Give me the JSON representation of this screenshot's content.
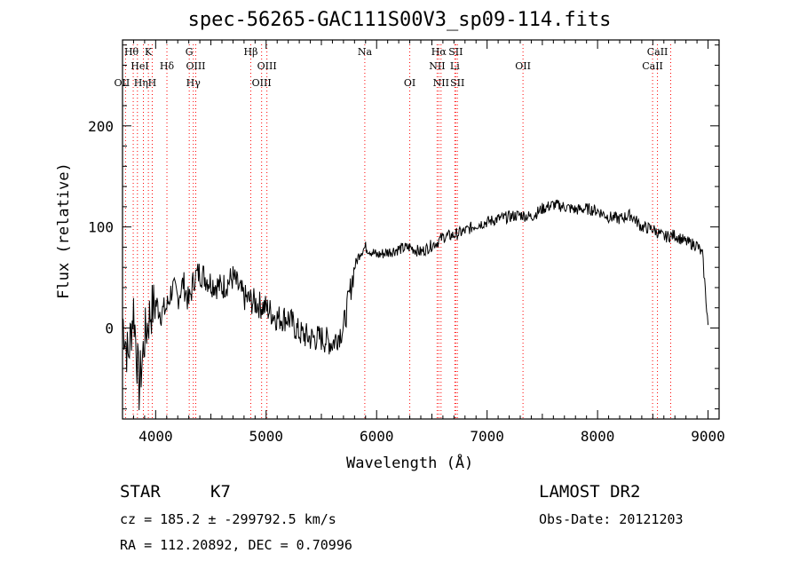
{
  "chart_data": {
    "type": "line",
    "title": "spec-56265-GAC111S00V3_sp09-114.fits",
    "xlabel": "Wavelength (Å)",
    "ylabel": "Flux (relative)",
    "xlim": [
      3700,
      9100
    ],
    "ylim": [
      -90,
      285
    ],
    "xticks": [
      4000,
      5000,
      6000,
      7000,
      8000,
      9000
    ],
    "yticks": [
      0,
      100,
      200
    ],
    "grid": false,
    "line_color": "#000000",
    "marker_color": "#ff0000",
    "x": [
      3700,
      3750,
      3800,
      3850,
      3900,
      3950,
      4000,
      4050,
      4100,
      4150,
      4200,
      4250,
      4300,
      4350,
      4400,
      4500,
      4600,
      4700,
      4800,
      4900,
      5000,
      5100,
      5200,
      5300,
      5400,
      5500,
      5600,
      5700,
      5750,
      5800,
      5850,
      5900,
      6000,
      6100,
      6200,
      6300,
      6400,
      6500,
      6550,
      6600,
      6700,
      6800,
      6900,
      7000,
      7100,
      7200,
      7300,
      7400,
      7500,
      7600,
      7700,
      7800,
      7900,
      8000,
      8100,
      8200,
      8300,
      8400,
      8500,
      8600,
      8700,
      8800,
      8900,
      8950,
      9000
    ],
    "y": [
      10,
      -30,
      20,
      -60,
      -10,
      15,
      25,
      15,
      20,
      40,
      30,
      45,
      25,
      50,
      55,
      45,
      40,
      50,
      30,
      25,
      20,
      10,
      10,
      -5,
      -10,
      -10,
      -15,
      0,
      30,
      60,
      75,
      80,
      72,
      75,
      78,
      80,
      75,
      82,
      85,
      90,
      92,
      96,
      102,
      105,
      108,
      110,
      112,
      110,
      118,
      122,
      120,
      117,
      118,
      116,
      110,
      108,
      112,
      100,
      98,
      90,
      92,
      85,
      82,
      72,
      3
    ],
    "line_markers": [
      {
        "label": "Hθ",
        "x": 3797,
        "row": 0,
        "dx": -2
      },
      {
        "label": "K",
        "x": 3934,
        "row": 0,
        "dx": 0
      },
      {
        "label": "HeI",
        "x": 3889,
        "row": 1,
        "dx": -4
      },
      {
        "label": "Hδ",
        "x": 4102,
        "row": 1,
        "dx": 0
      },
      {
        "label": "OII",
        "x": 3727,
        "row": 2,
        "dx": -4
      },
      {
        "label": "Hη",
        "x": 3835,
        "row": 2,
        "dx": 4
      },
      {
        "label": "H",
        "x": 3969,
        "row": 2,
        "dx": 0
      },
      {
        "label": "G",
        "x": 4304,
        "row": 0,
        "dx": 0
      },
      {
        "label": "OIII",
        "x": 4363,
        "row": 1,
        "dx": 0
      },
      {
        "label": "Hγ",
        "x": 4341,
        "row": 2,
        "dx": 0
      },
      {
        "label": "Hβ",
        "x": 4861,
        "row": 0,
        "dx": 0
      },
      {
        "label": "OIII",
        "x": 5007,
        "row": 1,
        "dx": 0
      },
      {
        "label": "OIII",
        "x": 4959,
        "row": 2,
        "dx": 0
      },
      {
        "label": "Na",
        "x": 5893,
        "row": 0,
        "dx": 0
      },
      {
        "label": "OI",
        "x": 6300,
        "row": 2,
        "dx": 0
      },
      {
        "label": "Hα",
        "x": 6563,
        "row": 0,
        "dx": 0
      },
      {
        "label": "SII",
        "x": 6716,
        "row": 0,
        "dx": 0
      },
      {
        "label": "NII",
        "x": 6548,
        "row": 1,
        "dx": 0
      },
      {
        "label": "Li",
        "x": 6708,
        "row": 1,
        "dx": 0
      },
      {
        "label": "NII",
        "x": 6583,
        "row": 2,
        "dx": 0
      },
      {
        "label": "SII",
        "x": 6731,
        "row": 2,
        "dx": 0
      },
      {
        "label": "OII",
        "x": 7325,
        "row": 1,
        "dx": 0
      },
      {
        "label": "CaII",
        "x": 8542,
        "row": 0,
        "dx": 0
      },
      {
        "label": "CaII",
        "x": 8498,
        "row": 1,
        "dx": 0
      }
    ],
    "extra_marker_lines": [
      3889,
      3934,
      4102,
      4341,
      4861,
      4959,
      5007,
      6548,
      6583,
      6716,
      6731,
      8662
    ]
  },
  "info": {
    "object": "STAR",
    "subclass": "K7",
    "survey": "LAMOST DR2",
    "redshift": "cz = 185.2 ± -299792.5 km/s",
    "obsdate": "Obs-Date: 20121203",
    "coords": "RA = 112.20892, DEC =   0.70996"
  }
}
